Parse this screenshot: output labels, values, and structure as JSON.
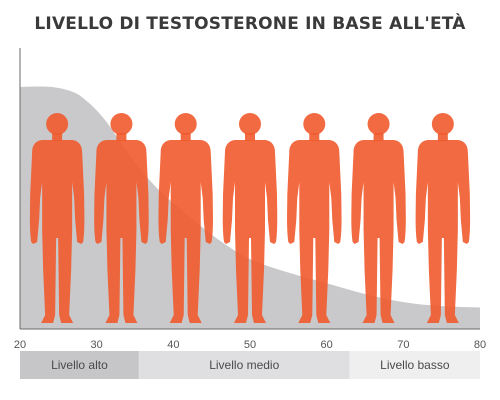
{
  "title": "LIVELLO DI TESTOSTERONE IN BASE ALL'ETÀ",
  "chart_data": {
    "type": "area",
    "title": "LIVELLO DI TESTOSTERONE IN BASE ALL'ETÀ",
    "xlabel": "",
    "ylabel": "",
    "xlim": [
      20,
      80
    ],
    "ylim": [
      0,
      100
    ],
    "x_ticks": [
      20,
      30,
      40,
      50,
      60,
      70,
      80
    ],
    "grid": false,
    "series": [
      {
        "x": [
          20,
          24,
          27,
          29,
          31,
          33,
          35,
          38,
          42,
          46,
          50,
          55,
          60,
          65,
          70,
          75,
          80
        ],
        "values": [
          90,
          90,
          88,
          84,
          78,
          70,
          62,
          52,
          42,
          33,
          26,
          21,
          17,
          13,
          10,
          8.5,
          8
        ],
        "color": "#c9c9cb"
      }
    ],
    "figures": {
      "count": 7,
      "color": "#ef5a2c"
    },
    "bands": [
      {
        "label": "Livello alto",
        "from": 20,
        "to": 35.5,
        "color": "#c6c6c8"
      },
      {
        "label": "Livello medio",
        "from": 35.5,
        "to": 63,
        "color": "#dfdfe1"
      },
      {
        "label": "Livello basso",
        "from": 63,
        "to": 80,
        "color": "#efeff0"
      }
    ]
  }
}
